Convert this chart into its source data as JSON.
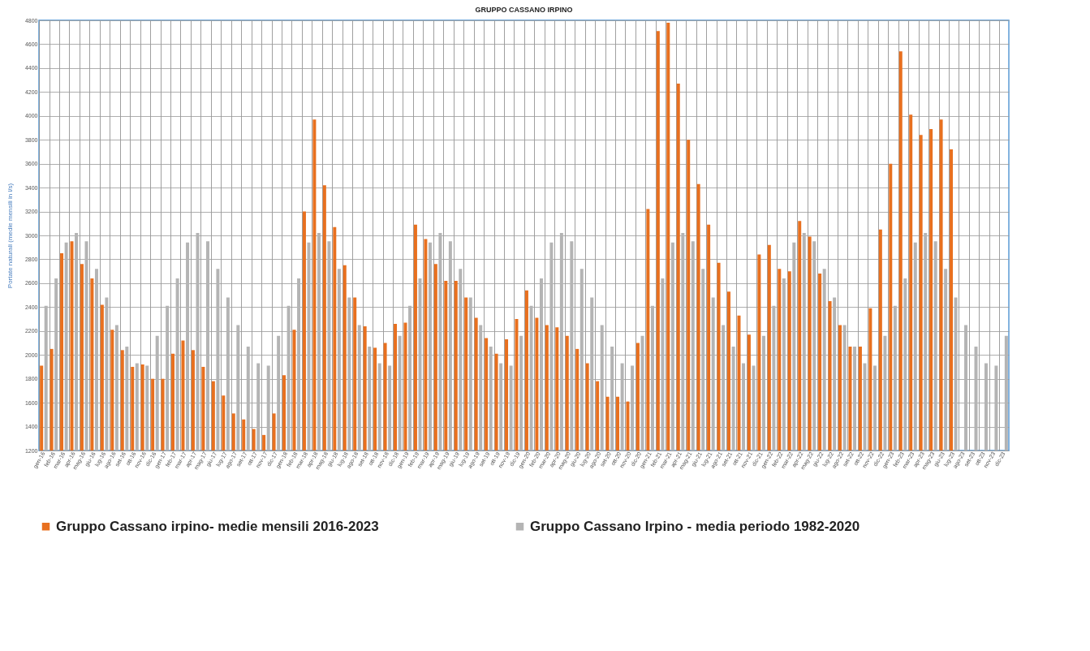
{
  "chart_data": {
    "type": "bar",
    "title": "GRUPPO CASSANO IRPINO",
    "ylabel": "Portate naturali (medie mensili in l/s)",
    "categories": [
      "gen-16",
      "feb-16",
      "mar-16",
      "apr-16",
      "mag-16",
      "giu-16",
      "lug-16",
      "ago-16",
      "set-16",
      "ott-16",
      "nov-16",
      "dic-16",
      "gen-17",
      "feb-17",
      "mar-17",
      "apr-17",
      "mag-17",
      "giu-17",
      "lug-17",
      "ago-17",
      "set-17",
      "ott-17",
      "nov-17",
      "dic-17",
      "gen-18",
      "feb-18",
      "mar-18",
      "apr-18",
      "mag-18",
      "giu-18",
      "lug-18",
      "ago-18",
      "set-18",
      "ott-18",
      "nov-18",
      "dic-18",
      "gen-19",
      "feb-19",
      "mar-19",
      "apr-19",
      "mag-19",
      "giu-19",
      "lug-19",
      "ago-19",
      "set-19",
      "ott-19",
      "nov-19",
      "dic-19",
      "gen-20",
      "feb-20",
      "mar-20",
      "apr-20",
      "mag-20",
      "giu-20",
      "lug-20",
      "ago-20",
      "set-20",
      "ott-20",
      "nov-20",
      "dic-20",
      "gen-21",
      "feb-21",
      "mar-21",
      "apr-21",
      "mag-21",
      "giu-21",
      "lug-21",
      "ago-21",
      "set-21",
      "ott-21",
      "nov-21",
      "dic-21",
      "gen-22",
      "feb-22",
      "mar-22",
      "apr-22",
      "mag-22",
      "giu-22",
      "lug-22",
      "ago-22",
      "set-22",
      "ott-22",
      "nov-22",
      "dic-22",
      "gen-23",
      "feb-23",
      "mar-23",
      "apr-23",
      "mag-23",
      "giu-23",
      "lug-23",
      "ago-23",
      "set-23",
      "ott-23",
      "nov-23",
      "dic-23"
    ],
    "series": [
      {
        "name": "Gruppo Cassano irpino- medie mensili  2016-2023",
        "color": "#e8701f",
        "values": [
          1910,
          2050,
          2850,
          2950,
          2760,
          2640,
          2420,
          2210,
          2040,
          1900,
          1920,
          1800,
          1800,
          2010,
          2120,
          2040,
          1900,
          1780,
          1660,
          1510,
          1460,
          1380,
          1330,
          1510,
          1830,
          2210,
          3200,
          3970,
          3420,
          3070,
          2750,
          2480,
          2240,
          2060,
          2100,
          2260,
          2270,
          3090,
          2970,
          2760,
          2620,
          2620,
          2480,
          2310,
          2140,
          2010,
          2130,
          2300,
          2540,
          2310,
          2250,
          2230,
          2160,
          2050,
          1930,
          1780,
          1650,
          1650,
          1610,
          2100,
          3220,
          4710,
          4780,
          4270,
          3800,
          3430,
          3090,
          2770,
          2530,
          2330,
          2170,
          2840,
          2920,
          2720,
          2700,
          3120,
          2990,
          2680,
          2450,
          2250,
          2070,
          2070,
          2390,
          3050,
          3600,
          4540,
          4010,
          3840,
          3890,
          3970,
          3720,
          null,
          null,
          null,
          null,
          null
        ]
      },
      {
        "name": "Gruppo Cassano Irpino - media periodo 1982-2020",
        "color": "#b4b4b4",
        "values": [
          2410,
          2640,
          2940,
          3020,
          2950,
          2720,
          2480,
          2250,
          2070,
          1930,
          1910,
          2160,
          2410,
          2640,
          2940,
          3020,
          2950,
          2720,
          2480,
          2250,
          2070,
          1930,
          1910,
          2160,
          2410,
          2640,
          2940,
          3020,
          2950,
          2720,
          2480,
          2250,
          2070,
          1930,
          1910,
          2160,
          2410,
          2640,
          2940,
          3020,
          2950,
          2720,
          2480,
          2250,
          2070,
          1930,
          1910,
          2160,
          2410,
          2640,
          2940,
          3020,
          2950,
          2720,
          2480,
          2250,
          2070,
          1930,
          1910,
          2160,
          2410,
          2640,
          2940,
          3020,
          2950,
          2720,
          2480,
          2250,
          2070,
          1930,
          1910,
          2160,
          2410,
          2640,
          2940,
          3020,
          2950,
          2720,
          2480,
          2250,
          2070,
          1930,
          1910,
          2160,
          2410,
          2640,
          2940,
          3020,
          2950,
          2720,
          2480,
          2250,
          2070,
          1930,
          1910,
          2160
        ]
      }
    ],
    "ylim": [
      1200,
      4800
    ],
    "yticks": [
      1200,
      1400,
      1600,
      1800,
      2000,
      2200,
      2400,
      2600,
      2800,
      3000,
      3200,
      3400,
      3600,
      3800,
      4000,
      4200,
      4400,
      4600,
      4800
    ],
    "grid": true,
    "legend": "bottom"
  }
}
